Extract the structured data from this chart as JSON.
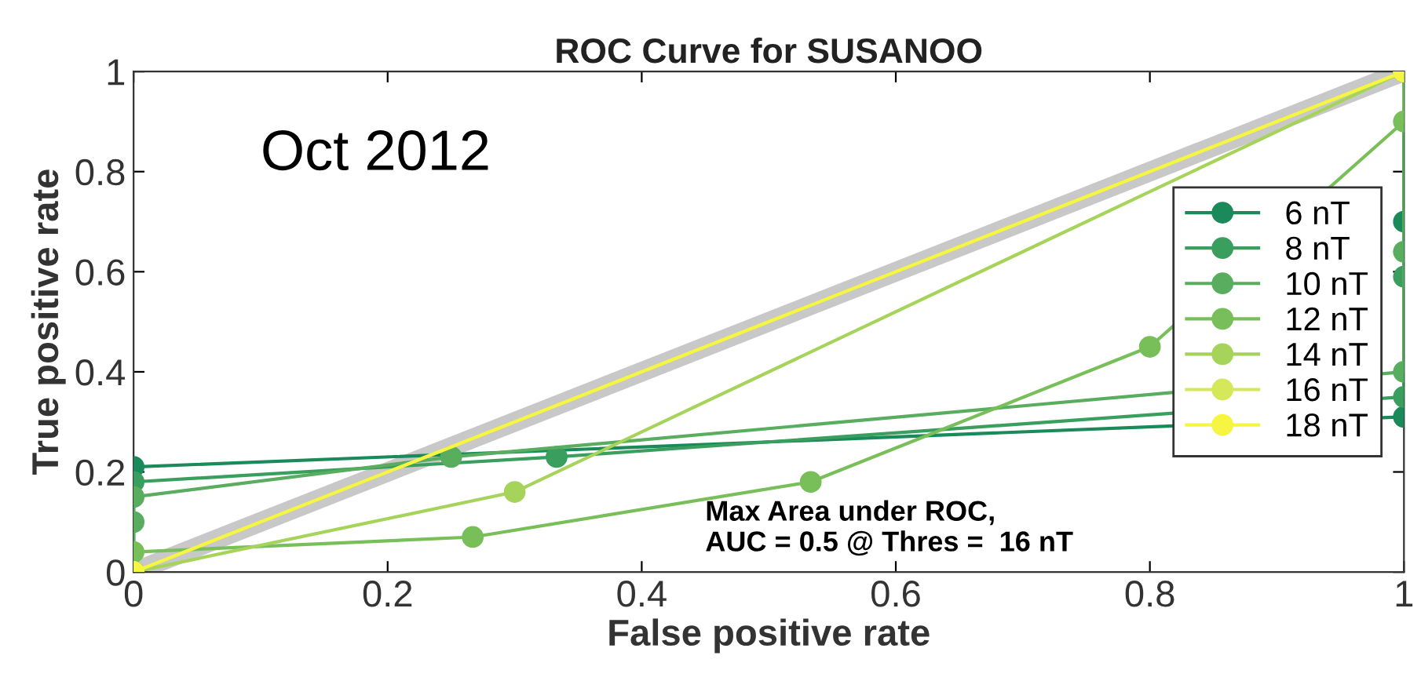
{
  "chart_data": {
    "type": "line",
    "title": "ROC Curve for SUSANOO",
    "xlabel": "False positive rate",
    "ylabel": "True positive rate",
    "annotations": [
      "Oct 2012",
      "Max Area under ROC,\nAUC = 0.5 @ Thres =  16 nT"
    ],
    "xlim": [
      0,
      1
    ],
    "ylim": [
      0,
      1
    ],
    "xticks": [
      0,
      0.2,
      0.4,
      0.6,
      0.8,
      1
    ],
    "yticks": [
      0,
      0.2,
      0.4,
      0.6,
      0.8,
      1
    ],
    "grid": false,
    "legend": "right",
    "marker": "circle",
    "series": [
      {
        "color": "#c8c8c8",
        "marker": "none",
        "x": [
          0,
          1
        ],
        "values": [
          0,
          1
        ]
      },
      {
        "name": "6 nT",
        "color": "#1b8a5a",
        "x": [
          0,
          0,
          1,
          1,
          1
        ],
        "values": [
          0,
          0.21,
          0.31,
          0.7,
          1
        ]
      },
      {
        "name": "8 nT",
        "color": "#3a9e5f",
        "x": [
          0,
          0,
          0.333,
          1,
          1,
          1
        ],
        "values": [
          0,
          0.18,
          0.23,
          0.35,
          0.59,
          1
        ]
      },
      {
        "name": "10 nT",
        "color": "#58ad5e",
        "x": [
          0,
          0,
          0,
          0.25,
          1,
          1,
          1
        ],
        "values": [
          0,
          0.1,
          0.15,
          0.23,
          0.4,
          0.64,
          1
        ]
      },
      {
        "name": "12 nT",
        "color": "#78bf5a",
        "x": [
          0,
          0,
          0.267,
          0.533,
          0.8,
          1,
          1
        ],
        "values": [
          0,
          0.04,
          0.07,
          0.18,
          0.45,
          0.9,
          1
        ]
      },
      {
        "name": "14 nT",
        "color": "#a6d35a",
        "x": [
          0,
          0.3,
          1
        ],
        "values": [
          0,
          0.16,
          1
        ]
      },
      {
        "name": "16 nT",
        "color": "#d4e85a",
        "x": [
          0,
          1
        ],
        "values": [
          0,
          1
        ]
      },
      {
        "name": "18 nT",
        "color": "#f5f542",
        "x": [
          0,
          1
        ],
        "values": [
          0,
          1
        ]
      }
    ]
  }
}
